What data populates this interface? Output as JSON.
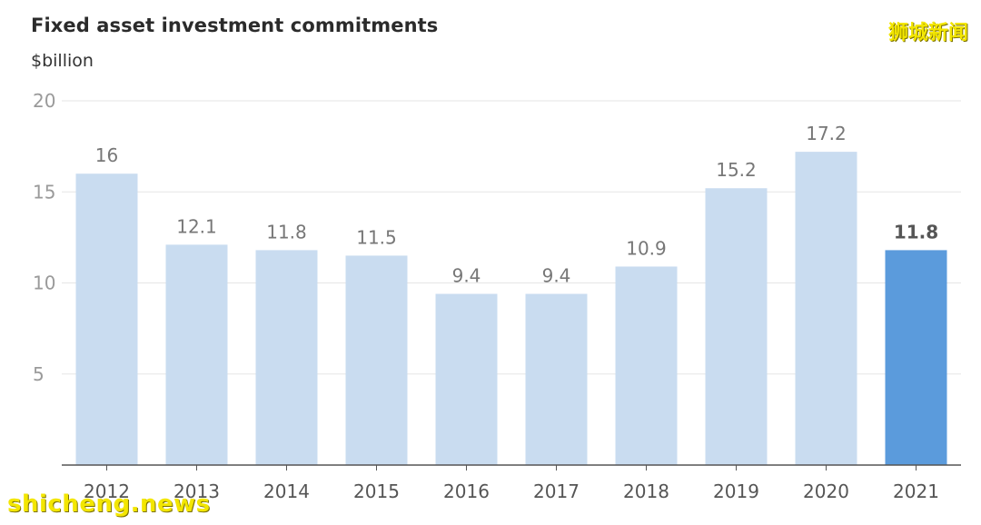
{
  "header": {
    "title": "Fixed asset investment commitments",
    "unit": "$billion"
  },
  "watermark": {
    "top_right": "狮城新闻",
    "bottom_left": "shicheng.news"
  },
  "colors": {
    "bar_light": "#c9dcf0",
    "bar_highlight": "#5b9bdc",
    "grid": "#e6e6e6",
    "axis": "#555555",
    "tick_text": "#9a9a9a",
    "label_text": "#777777",
    "highlight_label_text": "#555555"
  },
  "chart_data": {
    "type": "bar",
    "title": "Fixed asset investment commitments",
    "ylabel": "$billion",
    "xlabel": "",
    "categories": [
      "2012",
      "2013",
      "2014",
      "2015",
      "2016",
      "2017",
      "2018",
      "2019",
      "2020",
      "2021"
    ],
    "values": [
      16,
      12.1,
      11.8,
      11.5,
      9.4,
      9.4,
      10.9,
      15.2,
      17.2,
      11.8
    ],
    "value_labels": [
      "16",
      "12.1",
      "11.8",
      "11.5",
      "9.4",
      "9.4",
      "10.9",
      "15.2",
      "17.2",
      "11.8"
    ],
    "highlight_index": 9,
    "ylim": [
      0,
      20
    ],
    "yticks": [
      5,
      10,
      15,
      20
    ],
    "grid": true,
    "legend": "none"
  }
}
